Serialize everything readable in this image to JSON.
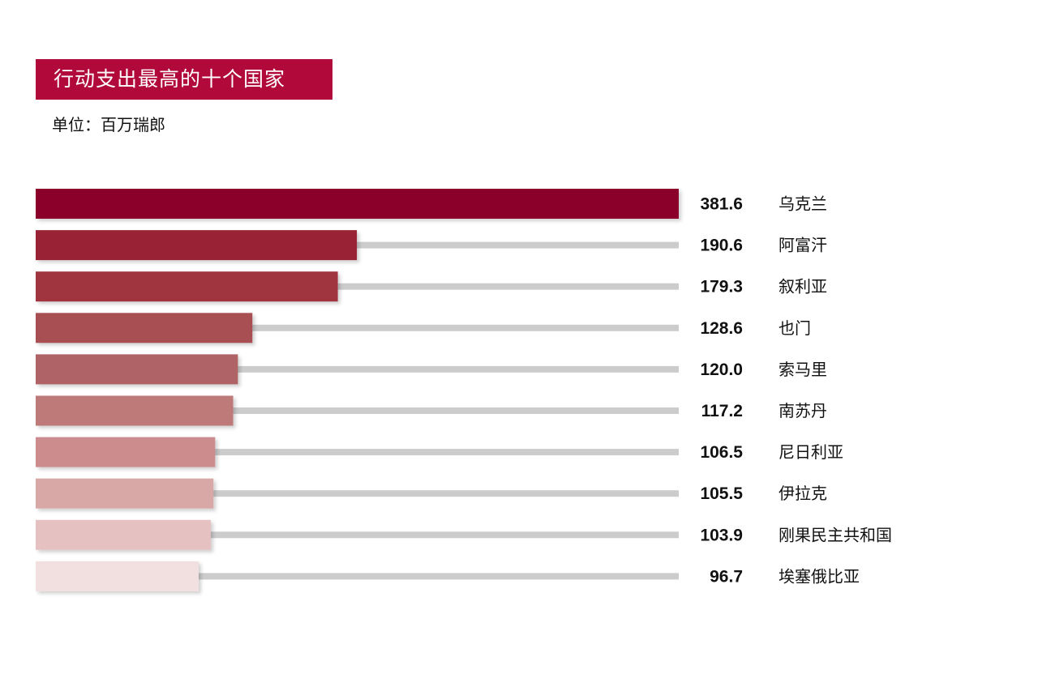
{
  "chart_data": {
    "type": "bar",
    "orientation": "horizontal",
    "title": "行动支出最高的十个国家",
    "subtitle": "单位：百万瑞郎",
    "categories": [
      "乌克兰",
      "阿富汗",
      "叙利亚",
      "也门",
      "索马里",
      "南苏丹",
      "尼日利亚",
      "伊拉克",
      "刚果民主共和国",
      "埃塞俄比亚"
    ],
    "values": [
      381.6,
      190.6,
      179.3,
      128.6,
      120.0,
      117.2,
      106.5,
      105.5,
      103.9,
      96.7
    ],
    "value_labels": [
      "381.6",
      "190.6",
      "179.3",
      "128.6",
      "120.0",
      "117.2",
      "106.5",
      "105.5",
      "103.9",
      "96.7"
    ],
    "xlim": [
      0,
      381.6
    ],
    "grid": false,
    "legend": "none",
    "colors": [
      "#8b0029",
      "#9a2036",
      "#a0353f",
      "#a85053",
      "#b06466",
      "#bd7a78",
      "#cc8c8e",
      "#d8a8a7",
      "#e5c1c1",
      "#f2dfe0"
    ],
    "track_color": "#cccccc",
    "title_bg_color": "#b0093a"
  }
}
